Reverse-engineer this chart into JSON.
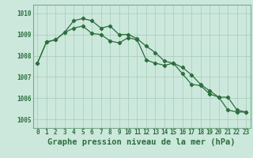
{
  "title": "Graphe pression niveau de la mer (hPa)",
  "bg_color": "#cce8dc",
  "grid_color": "#aacfbf",
  "line_color": "#2d6e3e",
  "border_color": "#7aaa8a",
  "xlim": [
    -0.5,
    23.5
  ],
  "ylim": [
    1004.6,
    1010.4
  ],
  "yticks": [
    1005,
    1006,
    1007,
    1008,
    1009,
    1010
  ],
  "xticks": [
    0,
    1,
    2,
    3,
    4,
    5,
    6,
    7,
    8,
    9,
    10,
    11,
    12,
    13,
    14,
    15,
    16,
    17,
    18,
    19,
    20,
    21,
    22,
    23
  ],
  "series1": [
    1007.65,
    1008.65,
    1008.75,
    1009.1,
    1009.65,
    1009.75,
    1009.65,
    1009.3,
    1009.4,
    1009.0,
    1009.0,
    1008.8,
    1008.45,
    1008.15,
    1007.75,
    1007.65,
    1007.45,
    1007.1,
    1006.65,
    1006.35,
    1006.05,
    1006.05,
    1005.45,
    1005.35
  ],
  "series2": [
    1007.65,
    1008.65,
    1008.75,
    1009.1,
    1009.3,
    1009.4,
    1009.05,
    1009.0,
    1008.7,
    1008.6,
    1008.85,
    1008.75,
    1007.8,
    1007.65,
    1007.55,
    1007.65,
    1007.15,
    1006.65,
    1006.6,
    1006.2,
    1006.05,
    1005.45,
    1005.35,
    1005.35
  ],
  "label_fontsize": 7.5,
  "tick_fontsize": 5.5
}
